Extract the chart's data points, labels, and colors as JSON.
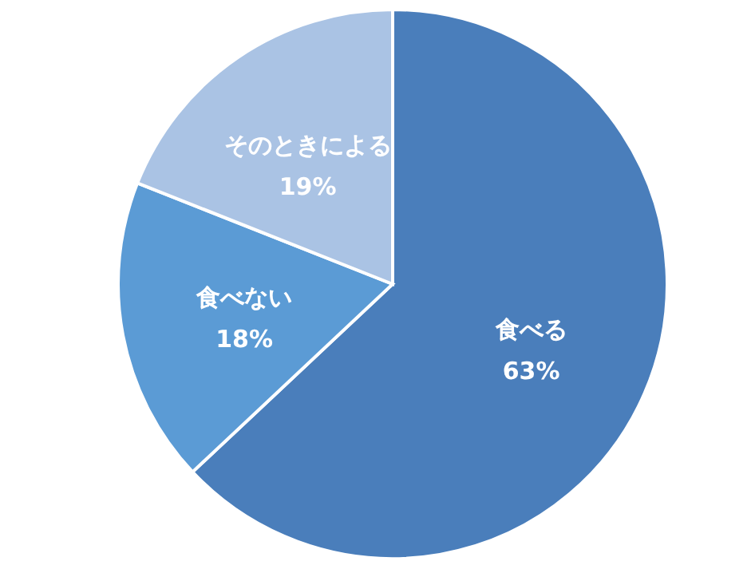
{
  "chart_data": {
    "type": "pie",
    "categories": [
      "食べる",
      "食べない",
      "そのときによる"
    ],
    "values": [
      63,
      18,
      19
    ],
    "colors": [
      "#4a7ebb",
      "#5b9bd5",
      "#aac3e4"
    ],
    "value_labels": [
      "63%",
      "18%",
      "19%"
    ]
  }
}
